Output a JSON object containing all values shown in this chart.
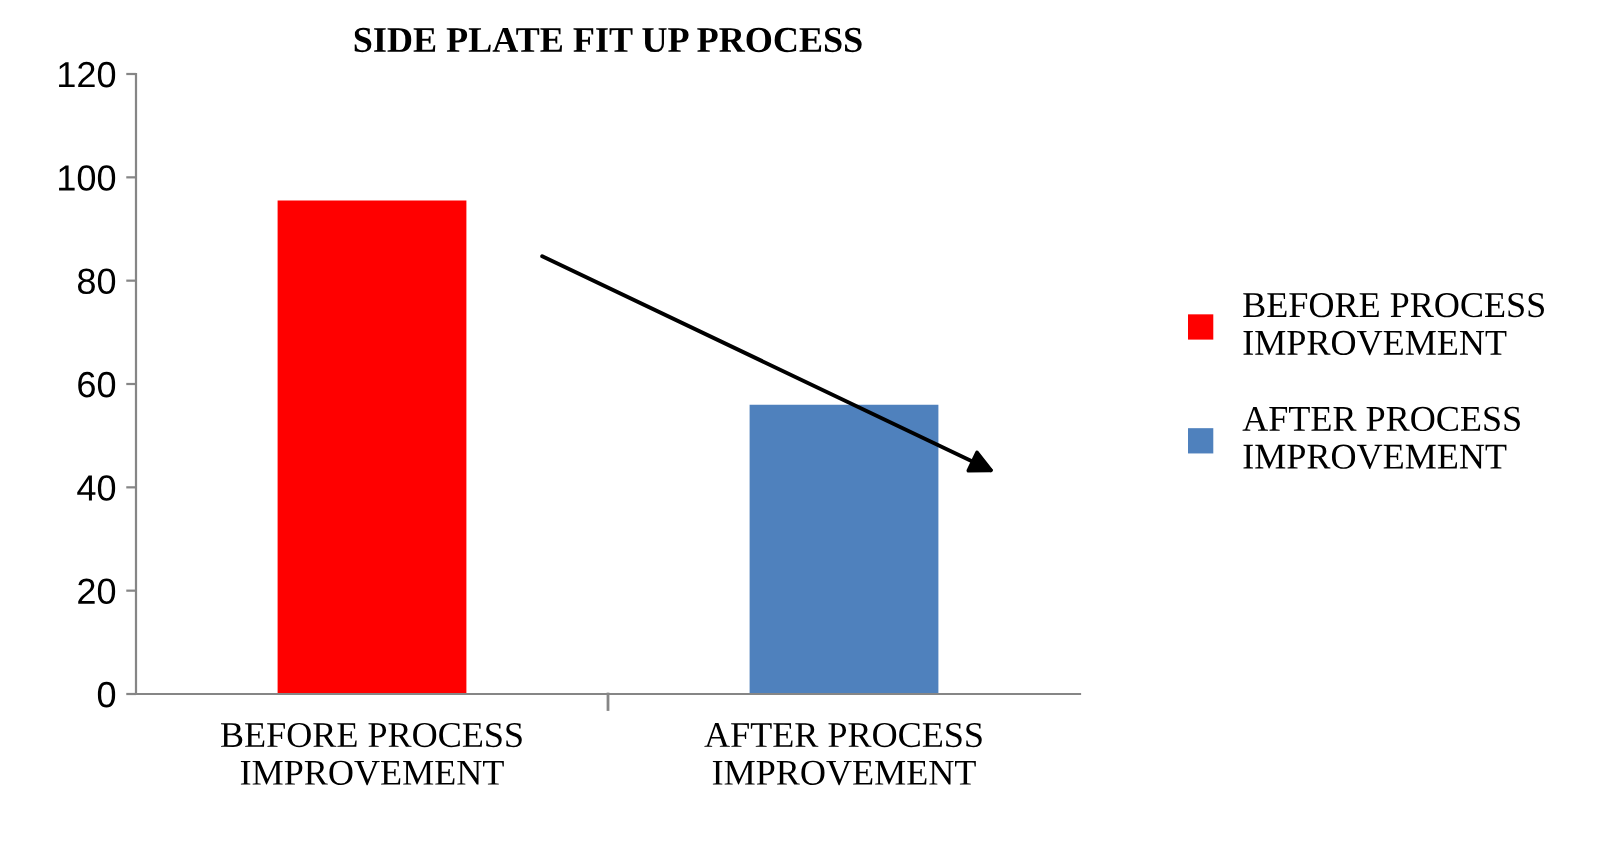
{
  "chart_data": {
    "type": "bar",
    "title": "SIDE PLATE FIT UP PROCESS",
    "categories": [
      "BEFORE PROCESS\nIMPROVEMENT",
      "AFTER PROCESS\nIMPROVEMENT"
    ],
    "series": [
      {
        "name": "BEFORE PROCESS\nIMPROVEMENT",
        "color": "#ff0000",
        "values": [
          95.5,
          null
        ]
      },
      {
        "name": "AFTER PROCESS\nIMPROVEMENT",
        "color": "#4f81bd",
        "values": [
          null,
          56
        ]
      }
    ],
    "ylim": [
      0,
      120
    ],
    "yticks": [
      0,
      20,
      40,
      60,
      80,
      100,
      120
    ],
    "grid": false,
    "legend": "right"
  }
}
